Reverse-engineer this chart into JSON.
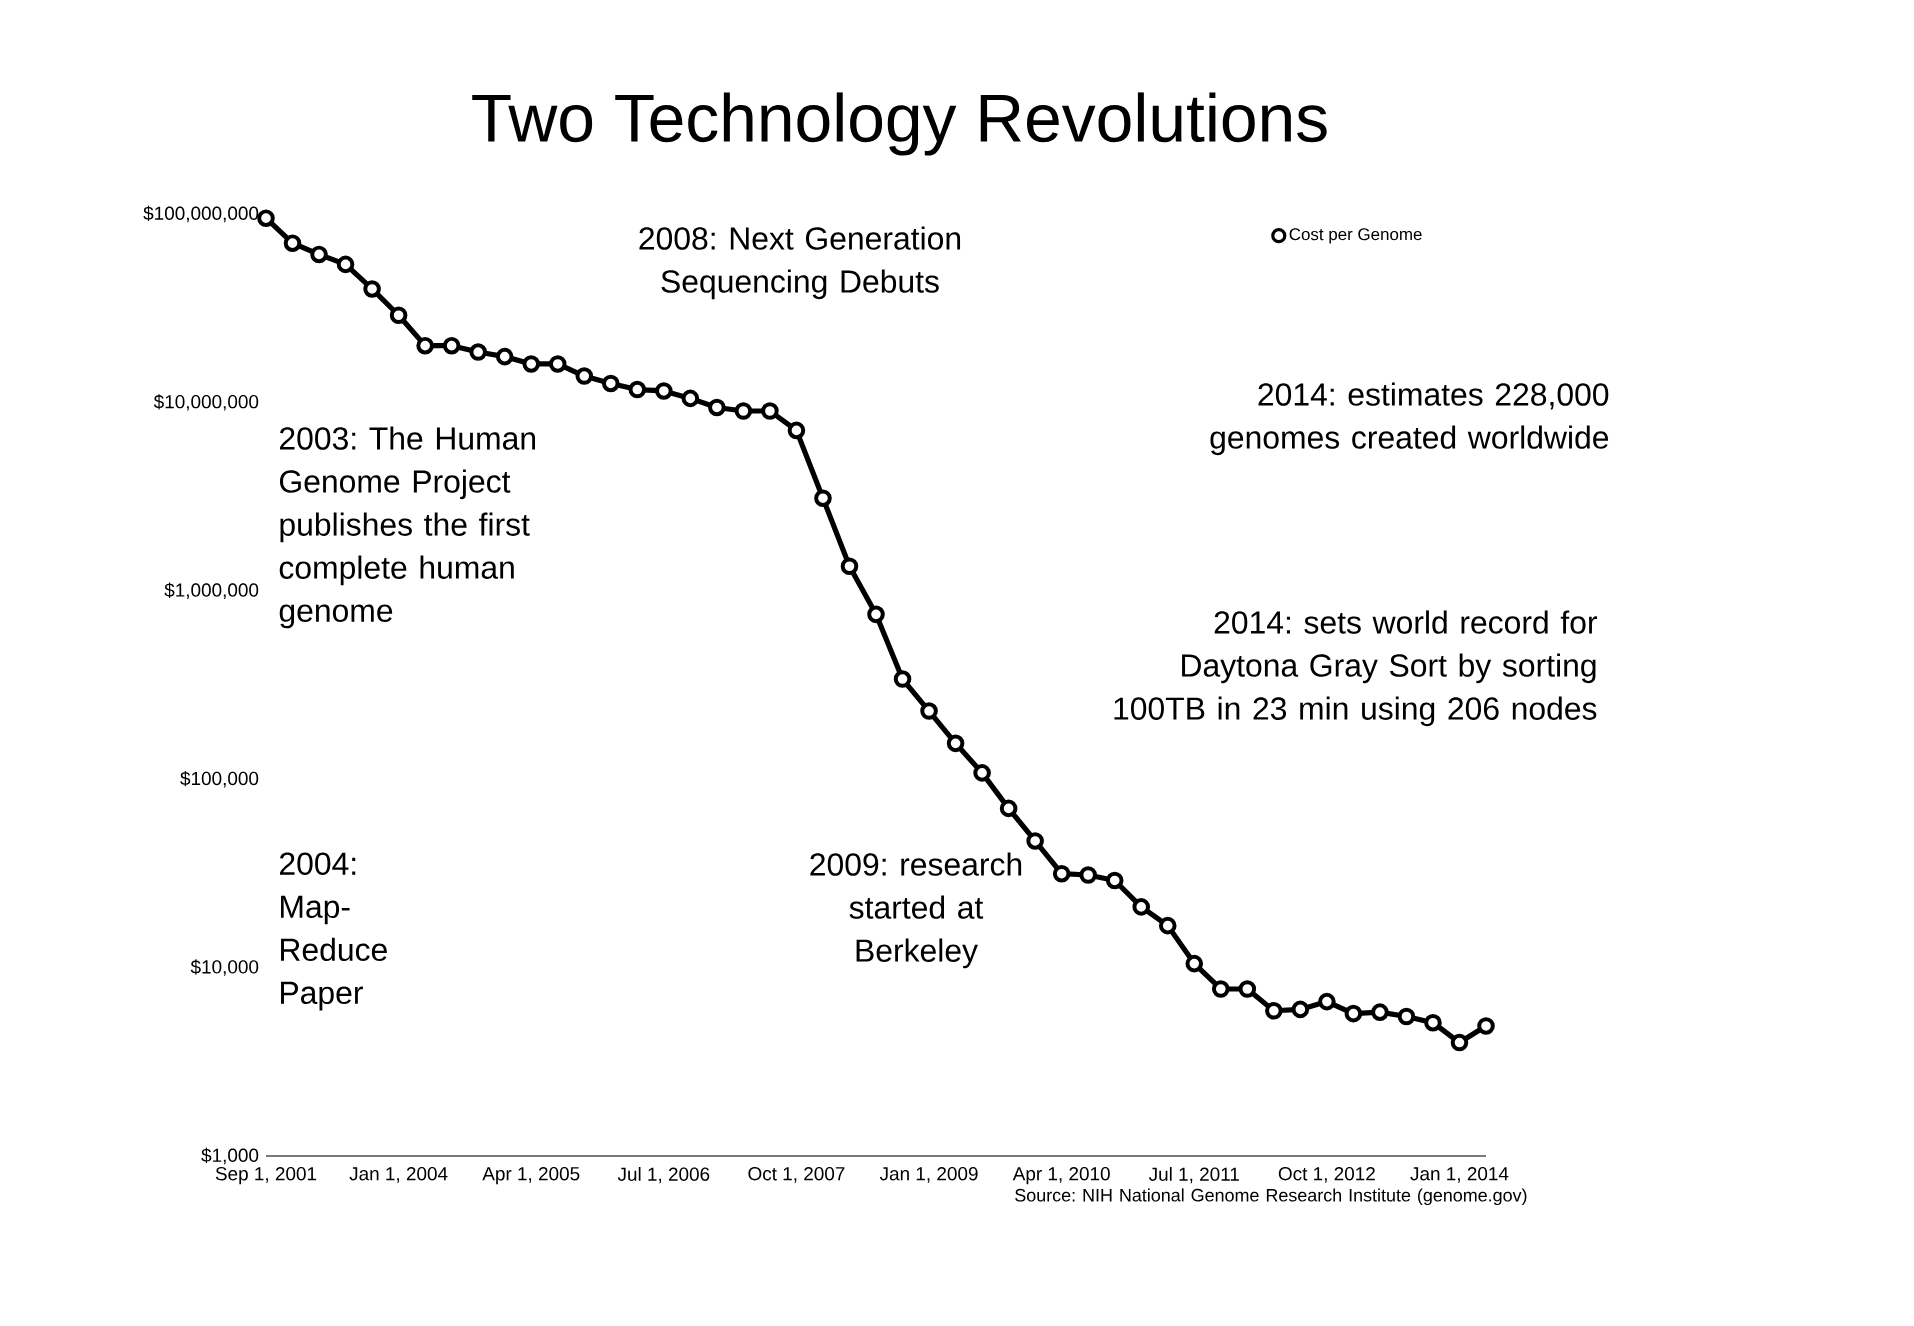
{
  "chart_data": {
    "type": "line",
    "title": "Two Technology Revolutions",
    "categories": [
      "Sep 1, 2001",
      null,
      null,
      null,
      null,
      "Jan 1, 2004",
      null,
      null,
      null,
      null,
      "Apr 1, 2005",
      null,
      null,
      null,
      null,
      "Jul 1, 2006",
      null,
      null,
      null,
      null,
      "Oct 1, 2007",
      null,
      null,
      null,
      null,
      "Jan 1, 2009",
      null,
      null,
      null,
      null,
      "Apr 1, 2010",
      null,
      null,
      null,
      null,
      "Jul 1, 2011",
      null,
      null,
      null,
      null,
      "Oct 1, 2012",
      null,
      null,
      null,
      null,
      "Jan 1, 2014",
      null
    ],
    "series": [
      {
        "name": "Cost per Genome",
        "color": "#000000",
        "values": [
          95000000,
          70000000,
          61000000,
          54000000,
          40000000,
          29000000,
          20000000,
          20000000,
          18500000,
          17500000,
          16000000,
          16000000,
          13800000,
          12600000,
          11700000,
          11500000,
          10500000,
          9400000,
          9000000,
          9000000,
          7100000,
          3100000,
          1350000,
          750000,
          340000,
          230000,
          155000,
          108000,
          70000,
          47000,
          31500,
          31000,
          29000,
          21000,
          16700,
          10500,
          7700,
          7700,
          5900,
          6000,
          6600,
          5700,
          5800,
          5500,
          5100,
          4000,
          4900
        ]
      }
    ],
    "ylim": [
      1000,
      100000000
    ],
    "log": true,
    "yticks": [
      {
        "value": 1000,
        "label": "$1,000"
      },
      {
        "value": 10000,
        "label": "$10,000"
      },
      {
        "value": 100000,
        "label": "$100,000"
      },
      {
        "value": 1000000,
        "label": "$1,000,000"
      },
      {
        "value": 10000000,
        "label": "$10,000,000"
      },
      {
        "value": 100000000,
        "label": "$100,000,000"
      }
    ],
    "marker": "circle",
    "legend": "top right",
    "grid": false,
    "annotations": [
      "2008: Next Generation Sequencing Debuts",
      "2003: The Human Genome Project publishes the first complete human genome",
      "2014: estimates 228,000 genomes created worldwide",
      "2014: sets world record for Daytona Gray Sort by sorting 100TB in 23 min using 206 nodes",
      "2004: Map-Reduce Paper",
      "2009: research started at Berkeley",
      "Source: NIH National Genome Research Institute (genome.gov)"
    ]
  }
}
